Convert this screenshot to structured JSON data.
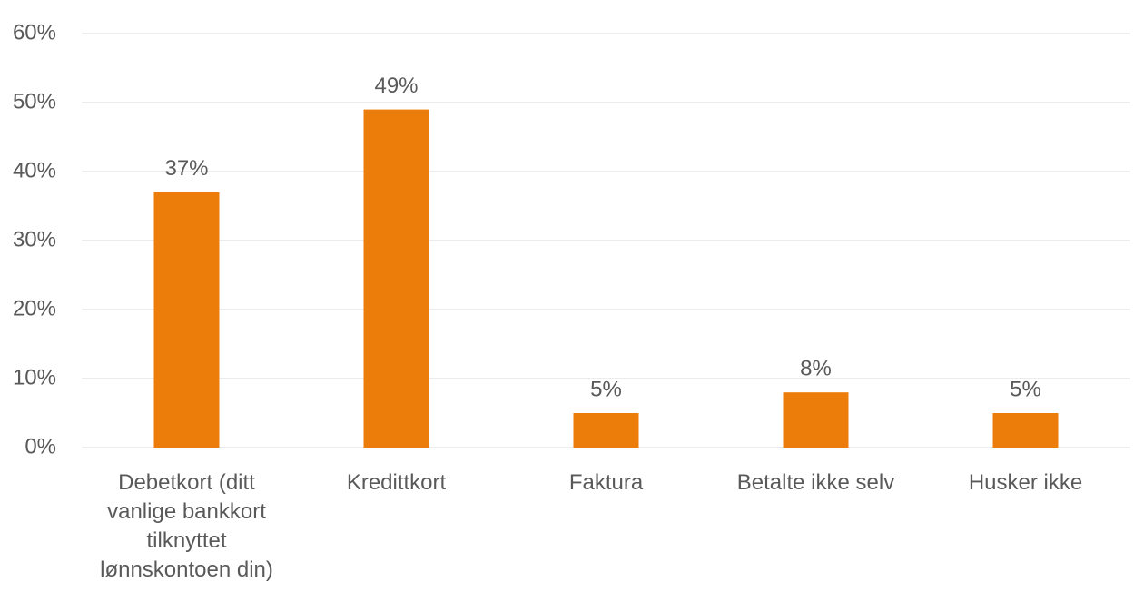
{
  "chart_data": {
    "type": "bar",
    "categories": [
      "Debetkort (ditt vanlige bankkort tilknyttet lønnskontoen din)",
      "Kredittkort",
      "Faktura",
      "Betalte ikke selv",
      "Husker ikke"
    ],
    "values": [
      37,
      49,
      5,
      8,
      5
    ],
    "value_labels": [
      "37%",
      "49%",
      "5%",
      "8%",
      "5%"
    ],
    "color": "#ed7d0a",
    "ylim": [
      0,
      60
    ],
    "yticks": [
      {
        "value": 0,
        "label": "0%"
      },
      {
        "value": 10,
        "label": "10%"
      },
      {
        "value": 20,
        "label": "20%"
      },
      {
        "value": 30,
        "label": "30%"
      },
      {
        "value": 40,
        "label": "40%"
      },
      {
        "value": 50,
        "label": "50%"
      },
      {
        "value": 60,
        "label": "60%"
      }
    ],
    "grid": true
  }
}
